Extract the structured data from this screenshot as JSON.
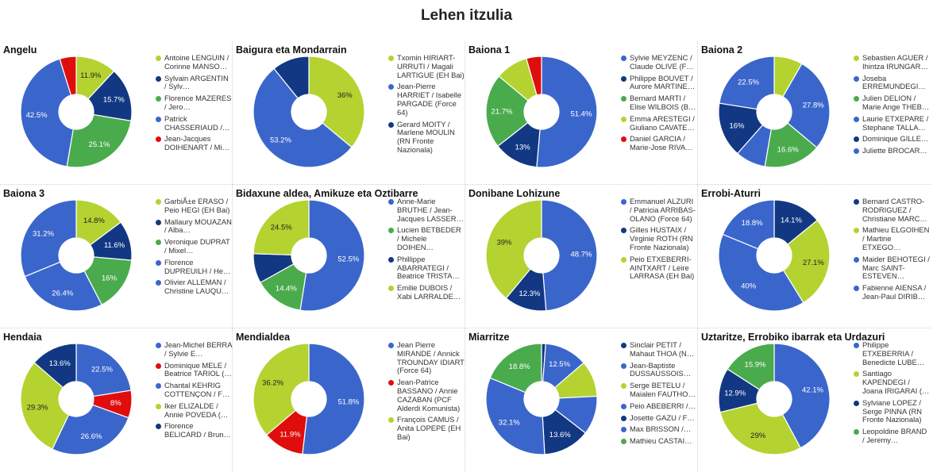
{
  "page_title": "Lehen itzulia",
  "colors": {
    "blue": "#3a66cc",
    "darkblue": "#123883",
    "green": "#4aab4c",
    "lime": "#b4d330",
    "red": "#e00d0d"
  },
  "chart_data": [
    {
      "type": "pie",
      "title": "Angelu",
      "slices": [
        {
          "label": "Antoine LENGUIN / Corinne MANSO…",
          "value": 11.9,
          "color": "#b4d330"
        },
        {
          "label": "Sylvain ARGENTIN / Sylv…",
          "value": 15.7,
          "color": "#123883"
        },
        {
          "label": "Florence MAZERES / Jero…",
          "value": 25.1,
          "color": "#4aab4c"
        },
        {
          "label": "Patrick CHASSERIAUD /…",
          "value": 42.5,
          "color": "#3a66cc"
        },
        {
          "label": "Jean-Jacques DOIHENART / Mi…",
          "value": 4.8,
          "color": "#e00d0d"
        }
      ],
      "data_labels": [
        "11.9%",
        "15.7%",
        "25.1%",
        "42.5%",
        ""
      ]
    },
    {
      "type": "pie",
      "title": "Baigura eta Mondarrain",
      "slices": [
        {
          "label": "Txomin HIRIART-URRUTI / Magali LARTIGUE (EH Bai)",
          "value": 36,
          "color": "#b4d330"
        },
        {
          "label": "Jean-Pierre HARRIET / Isabelle PARGADE (Force 64)",
          "value": 53.2,
          "color": "#3a66cc"
        },
        {
          "label": "Gerard MOITY / Marlene MOULIN (RN Fronte Nazionala)",
          "value": 10.8,
          "color": "#123883"
        }
      ],
      "data_labels": [
        "36%",
        "53.2%",
        ""
      ]
    },
    {
      "type": "pie",
      "title": "Baiona 1",
      "slices": [
        {
          "label": "Sylvie MEYZENC / Claude OLIVE (F…",
          "value": 51.4,
          "color": "#3a66cc"
        },
        {
          "label": "Philippe BOUVET / Aurore MARTINE…",
          "value": 13,
          "color": "#123883"
        },
        {
          "label": "Bernard MARTI / Elise WILBOIS (B…",
          "value": 21.7,
          "color": "#4aab4c"
        },
        {
          "label": "Emma ARESTEGI / Giuliano CAVATE…",
          "value": 9.5,
          "color": "#b4d330"
        },
        {
          "label": "Daniel GARCIA / Marie-Jose RIVA…",
          "value": 4.4,
          "color": "#e00d0d"
        }
      ],
      "data_labels": [
        "51.4%",
        "13%",
        "21.7%",
        "",
        ""
      ]
    },
    {
      "type": "pie",
      "title": "Baiona 2",
      "slices": [
        {
          "label": "Sebastien AGUER / Ihintza IRUNGAR…",
          "value": 8.3,
          "color": "#b4d330"
        },
        {
          "label": "Joseba ERREMUNDEGI…",
          "value": 27.8,
          "color": "#3a66cc"
        },
        {
          "label": "Julien DELION / Marie Ange THEB…",
          "value": 16.6,
          "color": "#4aab4c"
        },
        {
          "label": "Laurie ETXEPARE / Stephane TALLA…",
          "value": 8.8,
          "color": "#3a66cc"
        },
        {
          "label": "Dominique GILLE…",
          "value": 16,
          "color": "#123883"
        },
        {
          "label": "Juliette BROCAR…",
          "value": 22.5,
          "color": "#3a66cc"
        }
      ],
      "data_labels": [
        "",
        "27.8%",
        "16.6%",
        "",
        "16%",
        "22.5%"
      ]
    },
    {
      "type": "pie",
      "title": "Baiona 3",
      "slices": [
        {
          "label": "GarbiÃ±e ERASO / Peio HEGI (EH Bai)",
          "value": 14.8,
          "color": "#b4d330"
        },
        {
          "label": "Mallaury MOUAZAN / Alba…",
          "value": 11.6,
          "color": "#123883"
        },
        {
          "label": "Veronique DUPRAT / Mixel…",
          "value": 16,
          "color": "#4aab4c"
        },
        {
          "label": "Florence DUPREUILH / He…",
          "value": 26.4,
          "color": "#3a66cc"
        },
        {
          "label": "Olivier ALLEMAN / Christine LAUQU…",
          "value": 31.2,
          "color": "#3a66cc"
        }
      ],
      "data_labels": [
        "14.8%",
        "11.6%",
        "16%",
        "26.4%",
        "31.2%"
      ]
    },
    {
      "type": "pie",
      "title": "Bidaxune aldea, Amikuze eta Oztibarre",
      "slices": [
        {
          "label": "Anne-Marie BRUTHE / Jean-Jacques LASSER…",
          "value": 52.5,
          "color": "#3a66cc"
        },
        {
          "label": "Lucien BETBEDER / Michele DOIHEN…",
          "value": 14.4,
          "color": "#4aab4c"
        },
        {
          "label": "Phillippe ABARRATEGI / Beatrice TRISTA…",
          "value": 8.6,
          "color": "#123883"
        },
        {
          "label": "Emilie DUBOIS / Xabi LARRALDE…",
          "value": 24.5,
          "color": "#b4d330"
        }
      ],
      "data_labels": [
        "52.5%",
        "14.4%",
        "",
        "24.5%"
      ]
    },
    {
      "type": "pie",
      "title": "Donibane Lohizune",
      "slices": [
        {
          "label": "Emmanuel ALZURI / Patricia ARRIBAS-OLANO (Force 64)",
          "value": 48.7,
          "color": "#3a66cc"
        },
        {
          "label": "Gilles HUSTAIX / Virginie ROTH (RN Fronte Nazionala)",
          "value": 12.3,
          "color": "#123883"
        },
        {
          "label": "Peio ETXEBERRI-AINTXART / Leire LARRASA (EH Bai)",
          "value": 39,
          "color": "#b4d330"
        }
      ],
      "data_labels": [
        "48.7%",
        "12.3%",
        "39%"
      ]
    },
    {
      "type": "pie",
      "title": "Errobi-Aturri",
      "slices": [
        {
          "label": "Bernard CASTRO-RODRIGUEZ / Christiane MARC…",
          "value": 14.1,
          "color": "#123883"
        },
        {
          "label": "Mathieu ELGOIHEN / Martine ETXEGO…",
          "value": 27.1,
          "color": "#b4d330"
        },
        {
          "label": "Maider BEHOTEGI / Marc SAINT-ESTEVEN…",
          "value": 40,
          "color": "#3a66cc"
        },
        {
          "label": "Fabienne AIENSA / Jean-Paul DIRIB…",
          "value": 18.8,
          "color": "#3a66cc"
        }
      ],
      "data_labels": [
        "14.1%",
        "27.1%",
        "40%",
        "18.8%"
      ]
    },
    {
      "type": "pie",
      "title": "Hendaia",
      "slices": [
        {
          "label": "Jean-Michel BERRA / Sylvie E…",
          "value": 22.5,
          "color": "#3a66cc"
        },
        {
          "label": "Dominique MELE / Beatrice TARIOL (…",
          "value": 8,
          "color": "#e00d0d"
        },
        {
          "label": "Chantal KEHRIG COTTENÇON / F…",
          "value": 26.6,
          "color": "#3a66cc"
        },
        {
          "label": "Iker ELIZALDE / Annie POVEDA (…",
          "value": 29.3,
          "color": "#b4d330"
        },
        {
          "label": "Florence BELICARD / Brun…",
          "value": 13.6,
          "color": "#123883"
        }
      ],
      "data_labels": [
        "22.5%",
        "8%",
        "26.6%",
        "29.3%",
        "13.6%"
      ]
    },
    {
      "type": "pie",
      "title": "Mendialdea",
      "slices": [
        {
          "label": "Jean Pierre MIRANDE / Annick TROUNDAY IDIART (Force 64)",
          "value": 51.8,
          "color": "#3a66cc"
        },
        {
          "label": "Jean-Patrice BASSANO / Annie CAZABAN (PCF Alderdi Komunista)",
          "value": 11.9,
          "color": "#e00d0d"
        },
        {
          "label": "François CAMUS / Anita LOPEPE (EH Bai)",
          "value": 36.2,
          "color": "#b4d330"
        }
      ],
      "data_labels": [
        "51.8%",
        "11.9%",
        "36.2%"
      ]
    },
    {
      "type": "pie",
      "title": "Miarritze",
      "slices": [
        {
          "label": "Sinclair PETIT / Mahaut THOA (N…",
          "value": 1.2,
          "color": "#123883"
        },
        {
          "label": "Jean-Baptiste DUSSAUSSOIS…",
          "value": 12.5,
          "color": "#3a66cc"
        },
        {
          "label": "Serge BETELU / Maialen FAUTHO…",
          "value": 10.5,
          "color": "#b4d330"
        },
        {
          "label": "Peio ABEBERRI /…",
          "value": 11.3,
          "color": "#3a66cc"
        },
        {
          "label": "Josette GAZU / F…",
          "value": 13.6,
          "color": "#123883"
        },
        {
          "label": "Max BRISSON /…",
          "value": 32.1,
          "color": "#3a66cc"
        },
        {
          "label": "Mathieu CASTAI…",
          "value": 18.8,
          "color": "#4aab4c"
        }
      ],
      "data_labels": [
        "",
        "12.5%",
        "",
        "",
        "13.6%",
        "32.1%",
        "18.8%"
      ]
    },
    {
      "type": "pie",
      "title": "Uztaritze, Errobiko ibarrak eta Urdazuri",
      "slices": [
        {
          "label": "Philippe ETXEBERRIA / Benedicte LUBE…",
          "value": 42.1,
          "color": "#3a66cc"
        },
        {
          "label": "Santiago KAPENDEGI / Joana IRIGARAI (…",
          "value": 29,
          "color": "#b4d330"
        },
        {
          "label": "Sylviane LOPEZ / Serge PINNA (RN Fronte Nazionala)",
          "value": 12.9,
          "color": "#123883"
        },
        {
          "label": "Leopoldine BRAND / Jeremy…",
          "value": 15.9,
          "color": "#4aab4c"
        }
      ],
      "data_labels": [
        "42.1%",
        "29%",
        "12.9%",
        "15.9%"
      ]
    }
  ]
}
